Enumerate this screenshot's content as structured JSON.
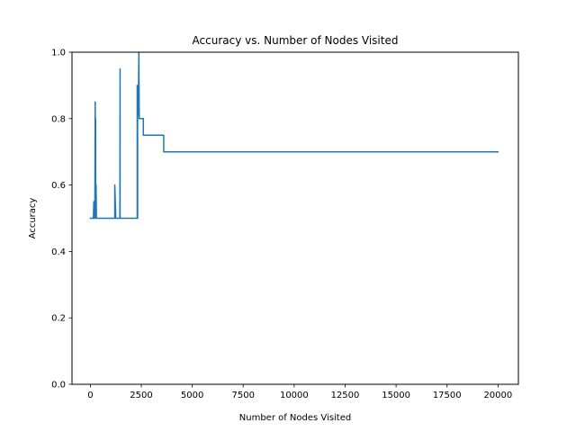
{
  "chart_data": {
    "type": "line",
    "title": "Accuracy vs. Number of Nodes Visited",
    "xlabel": "Number of Nodes Visited",
    "ylabel": "Accuracy",
    "xlim": [
      -900,
      21000
    ],
    "ylim": [
      0.0,
      1.0
    ],
    "x_ticks": [
      0,
      2500,
      5000,
      7500,
      10000,
      12500,
      15000,
      17500,
      20000
    ],
    "x_tick_labels": [
      "0",
      "2500",
      "5000",
      "7500",
      "10000",
      "12500",
      "15000",
      "17500",
      "20000"
    ],
    "y_ticks": [
      0.0,
      0.2,
      0.4,
      0.6,
      0.8,
      1.0
    ],
    "y_tick_labels": [
      "0.0",
      "0.2",
      "0.4",
      "0.6",
      "0.8",
      "1.0"
    ],
    "grid": false,
    "series": [
      {
        "color": "#1f77b4",
        "x": [
          0,
          150,
          170,
          170,
          200,
          220,
          220,
          240,
          250,
          260,
          260,
          280,
          290,
          300,
          300,
          1200,
          1200,
          1250,
          1250,
          1450,
          1460,
          1460,
          1470,
          2300,
          2300,
          2320,
          2320,
          2360,
          2380,
          2400,
          2400,
          2600,
          2600,
          3600,
          3600,
          20000
        ],
        "y": [
          0.5,
          0.5,
          0.55,
          0.5,
          0.5,
          0.55,
          0.5,
          0.85,
          0.5,
          0.8,
          0.5,
          0.6,
          0.55,
          0.5,
          0.5,
          0.5,
          0.6,
          0.5,
          0.5,
          0.5,
          0.95,
          0.5,
          0.5,
          0.5,
          0.9,
          0.5,
          0.8,
          0.85,
          1.0,
          0.8,
          0.8,
          0.8,
          0.75,
          0.75,
          0.7,
          0.7
        ]
      }
    ]
  }
}
